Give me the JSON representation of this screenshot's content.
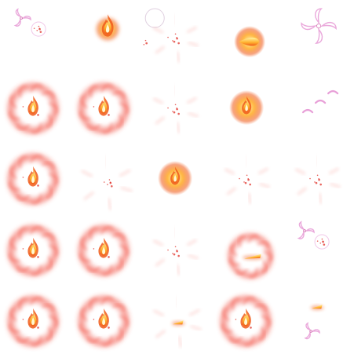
{
  "sheet": {
    "columns": 5,
    "rows": 5,
    "palette": {
      "flame_core": "#fff3a0",
      "flame_mid": "#ffb02e",
      "flame_edge": "#f05a1a",
      "glow_red": "#f04030",
      "ember": "#e03028",
      "swirl_pink": "#e8a0d8",
      "swirl_edge": "#c84a9a"
    },
    "frames": [
      {
        "type": "swirl-small",
        "icon": "pink-swirl-icon"
      },
      {
        "type": "flame-small",
        "icon": "small-flame-icon"
      },
      {
        "type": "sparks",
        "icon": "sparks-icon"
      },
      {
        "type": "fireball-side",
        "icon": "fireball-icon"
      },
      {
        "type": "swirl-large",
        "icon": "pink-vortex-icon"
      },
      {
        "type": "fire-ring",
        "icon": "fire-ring-icon"
      },
      {
        "type": "fire-ring",
        "icon": "fire-ring-icon"
      },
      {
        "type": "sparks",
        "icon": "sparks-icon"
      },
      {
        "type": "flame-orb",
        "icon": "flame-orb-icon"
      },
      {
        "type": "swirl-fragments",
        "icon": "swirl-fragments-icon"
      },
      {
        "type": "fire-ring",
        "icon": "fire-ring-icon"
      },
      {
        "type": "ring-faint",
        "icon": "faint-ring-icon"
      },
      {
        "type": "flame-orb",
        "icon": "flame-orb-icon"
      },
      {
        "type": "sparks",
        "icon": "sparks-icon"
      },
      {
        "type": "sparks",
        "icon": "sparks-icon"
      },
      {
        "type": "fire-ring",
        "icon": "fire-ring-icon"
      },
      {
        "type": "fire-ring",
        "icon": "fire-ring-icon"
      },
      {
        "type": "sparks",
        "icon": "sparks-icon"
      },
      {
        "type": "fireball-ring",
        "icon": "fireball-ring-icon"
      },
      {
        "type": "swirl-small",
        "icon": "pink-swirl-icon"
      },
      {
        "type": "fire-ring",
        "icon": "fire-ring-icon"
      },
      {
        "type": "fire-ring",
        "icon": "fire-ring-icon"
      },
      {
        "type": "ring-faint-bolt",
        "icon": "ring-bolt-icon"
      },
      {
        "type": "fire-ring",
        "icon": "fire-ring-icon"
      },
      {
        "type": "bolt-and-swirl",
        "icon": "bolt-swirl-icon"
      }
    ]
  }
}
